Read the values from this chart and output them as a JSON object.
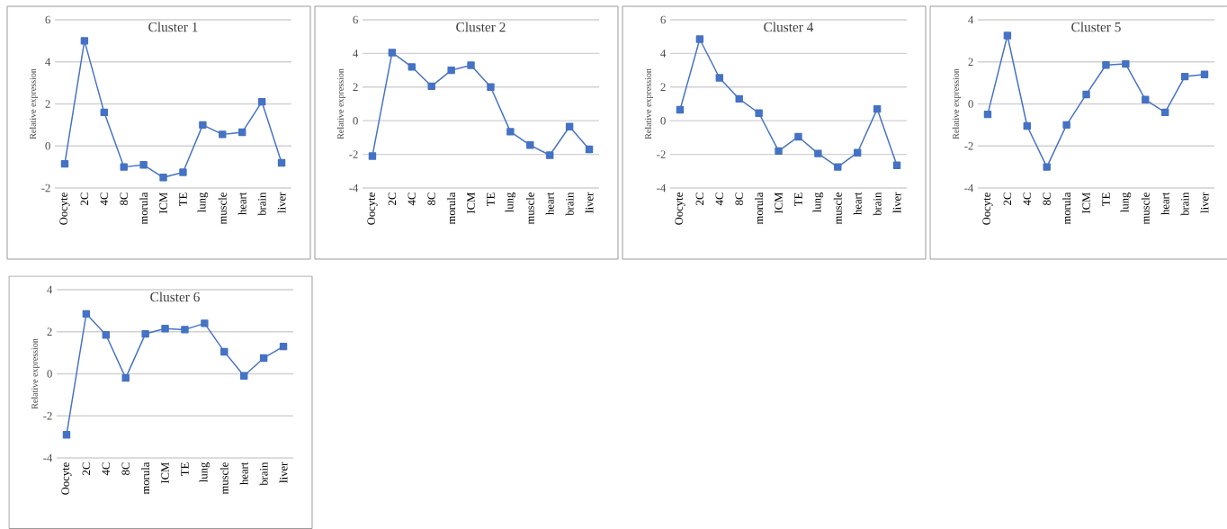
{
  "chart_data": [
    {
      "type": "line",
      "title": "Cluster 1",
      "ylabel": "Relative expression",
      "categories": [
        "Oocyte",
        "2C",
        "4C",
        "8C",
        "morula",
        "ICM",
        "TE",
        "lung",
        "muscle",
        "heart",
        "brain",
        "liver"
      ],
      "values": [
        -0.85,
        5.0,
        1.6,
        -1.0,
        -0.9,
        -1.5,
        -1.25,
        1.0,
        0.55,
        0.65,
        2.1,
        -0.8
      ],
      "color": "#4472c4",
      "ylim": [
        -2,
        6
      ],
      "yticks": [
        -2,
        0,
        2,
        4,
        6
      ],
      "grid": "y",
      "marker": "square"
    },
    {
      "type": "line",
      "title": "Cluster 2",
      "ylabel": "Relative expression",
      "categories": [
        "Oocyte",
        "2C",
        "4C",
        "8C",
        "morula",
        "ICM",
        "TE",
        "lung",
        "muscle",
        "heart",
        "brain",
        "liver"
      ],
      "values": [
        -2.1,
        4.05,
        3.2,
        2.05,
        3.0,
        3.3,
        2.0,
        -0.65,
        -1.45,
        -2.05,
        -0.35,
        -1.7
      ],
      "color": "#4472c4",
      "ylim": [
        -4,
        6
      ],
      "yticks": [
        -4,
        -2,
        0,
        2,
        4,
        6
      ],
      "grid": "y",
      "marker": "square"
    },
    {
      "type": "line",
      "title": "Cluster 4",
      "ylabel": "Relative expression",
      "categories": [
        "Oocyte",
        "2C",
        "4C",
        "8C",
        "morula",
        "ICM",
        "TE",
        "lung",
        "muscle",
        "heart",
        "brain",
        "liver"
      ],
      "values": [
        0.65,
        4.85,
        2.55,
        1.3,
        0.45,
        -1.8,
        -0.95,
        -1.95,
        -2.75,
        -1.9,
        0.7,
        -2.65
      ],
      "color": "#4472c4",
      "ylim": [
        -4,
        6
      ],
      "yticks": [
        -4,
        -2,
        0,
        2,
        4,
        6
      ],
      "grid": "y",
      "marker": "square"
    },
    {
      "type": "line",
      "title": "Cluster 5",
      "ylabel": "Relative expression",
      "categories": [
        "Oocyte",
        "2C",
        "4C",
        "8C",
        "morula",
        "ICM",
        "TE",
        "lung",
        "muscle",
        "heart",
        "brain",
        "liver"
      ],
      "values": [
        -0.5,
        3.25,
        -1.05,
        -3.0,
        -1.0,
        0.45,
        1.85,
        1.9,
        0.2,
        -0.4,
        1.3,
        1.4
      ],
      "color": "#4472c4",
      "ylim": [
        -4,
        4
      ],
      "yticks": [
        -4,
        -2,
        0,
        2,
        4
      ],
      "grid": "y",
      "marker": "square"
    },
    {
      "type": "line",
      "title": "Cluster 6",
      "ylabel": "Relative expression",
      "categories": [
        "Oocyte",
        "2C",
        "4C",
        "8C",
        "morula",
        "ICM",
        "TE",
        "lung",
        "muscle",
        "heart",
        "brain",
        "liver"
      ],
      "values": [
        -2.9,
        2.85,
        1.85,
        -0.2,
        1.9,
        2.15,
        2.1,
        2.4,
        1.05,
        -0.1,
        0.75,
        1.3
      ],
      "color": "#4472c4",
      "ylim": [
        -4,
        4
      ],
      "yticks": [
        -4,
        -2,
        0,
        2,
        4
      ],
      "grid": "y",
      "marker": "square"
    }
  ]
}
